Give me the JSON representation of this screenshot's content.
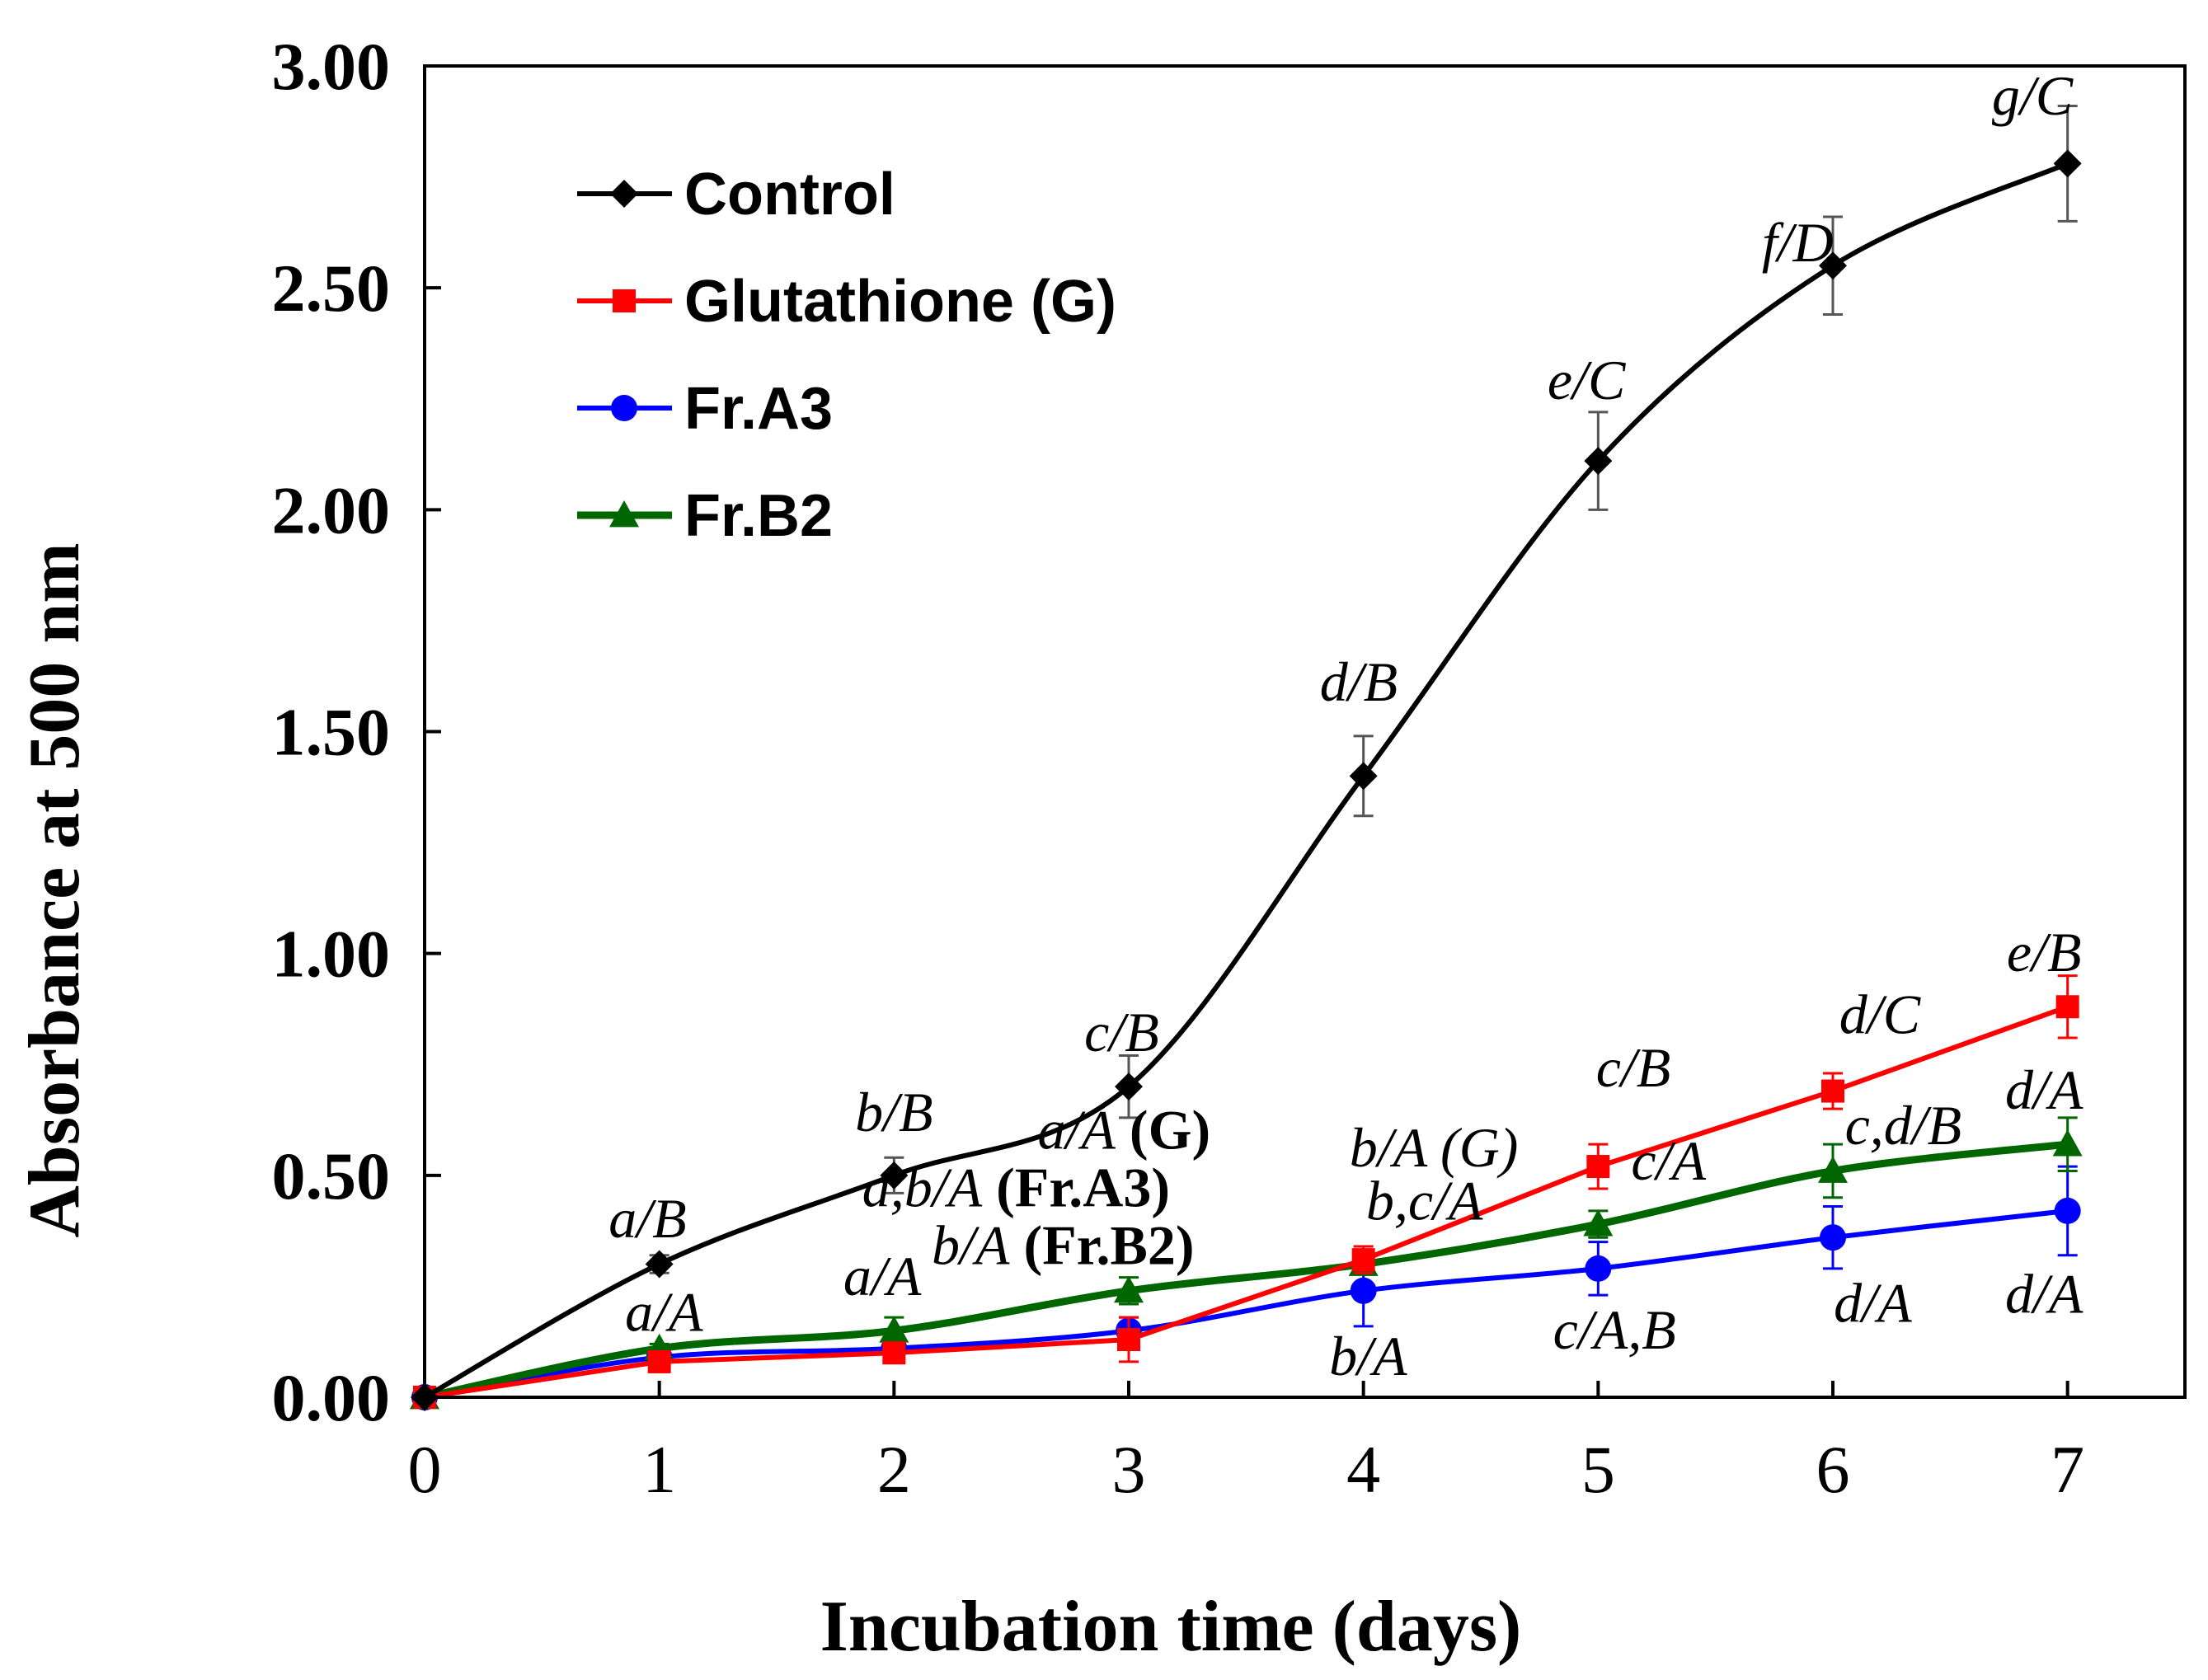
{
  "chart_data": {
    "type": "line",
    "title": "",
    "xlabel": "Incubation time (days)",
    "ylabel": "Absorbance at 500 nm",
    "x": [
      0,
      1,
      2,
      3,
      4,
      5,
      6,
      7
    ],
    "xlim": [
      0,
      7.5
    ],
    "ylim": [
      0,
      3.0
    ],
    "yticks": [
      "0.00",
      "0.50",
      "1.00",
      "1.50",
      "2.00",
      "2.50",
      "3.00"
    ],
    "xticks": [
      "0",
      "1",
      "2",
      "3",
      "4",
      "5",
      "6",
      "7"
    ],
    "legend_position": "top-left",
    "grid": false,
    "series": [
      {
        "name": "Control",
        "color": "#000000",
        "marker": "diamond",
        "smooth": true,
        "values": [
          0.0,
          0.3,
          0.5,
          0.7,
          1.4,
          2.11,
          2.55,
          2.78
        ],
        "errors": [
          0.0,
          0.02,
          0.04,
          0.07,
          0.09,
          0.11,
          0.11,
          0.13
        ]
      },
      {
        "name": "Glutathione (G)",
        "color": "#ff0000",
        "marker": "square",
        "smooth": false,
        "values": [
          0.0,
          0.08,
          0.1,
          0.13,
          0.31,
          0.52,
          0.69,
          0.88
        ],
        "errors": [
          0.0,
          0.02,
          0.02,
          0.05,
          0.03,
          0.05,
          0.04,
          0.07
        ]
      },
      {
        "name": "Fr.A3",
        "color": "#0000ff",
        "marker": "circle",
        "smooth": true,
        "values": [
          0.0,
          0.09,
          0.11,
          0.15,
          0.24,
          0.29,
          0.36,
          0.42
        ],
        "errors": [
          0.0,
          0.02,
          0.02,
          0.03,
          0.08,
          0.06,
          0.07,
          0.1
        ]
      },
      {
        "name": "Fr.B2",
        "color": "#006600",
        "marker": "triangle",
        "smooth": true,
        "values": [
          0.0,
          0.11,
          0.15,
          0.24,
          0.3,
          0.39,
          0.51,
          0.57
        ],
        "errors": [
          0.0,
          0.01,
          0.03,
          0.03,
          0.02,
          0.03,
          0.06,
          0.06
        ]
      }
    ],
    "annotations": [
      {
        "text": "a/B",
        "x": 0.95,
        "y": 0.36
      },
      {
        "text": "b/B",
        "x": 2.0,
        "y": 0.6
      },
      {
        "text": "c/B",
        "x": 2.97,
        "y": 0.78
      },
      {
        "text": "d/B",
        "x": 3.98,
        "y": 1.57
      },
      {
        "text": "e/C",
        "x": 4.95,
        "y": 2.25
      },
      {
        "text": "f/D",
        "x": 5.85,
        "y": 2.56
      },
      {
        "text": "g/C",
        "x": 6.85,
        "y": 2.89
      },
      {
        "text": "a/A",
        "x": 1.02,
        "y": 0.15
      },
      {
        "text": "a/A",
        "x": 1.95,
        "y": 0.23
      },
      {
        "text": "a/A",
        "x": 2.98,
        "y": 0.56,
        "suffix": " (G)"
      },
      {
        "text": "a,b/A",
        "x": 2.52,
        "y": 0.43,
        "suffix": " (Fr.A3)"
      },
      {
        "text": "b/A",
        "x": 2.72,
        "y": 0.3,
        "suffix": " (Fr.B2)"
      },
      {
        "text": "b/A (G)",
        "x": 4.3,
        "y": 0.52
      },
      {
        "text": "b,c/A",
        "x": 4.26,
        "y": 0.4
      },
      {
        "text": "b/A",
        "x": 4.02,
        "y": 0.05
      },
      {
        "text": "c/B",
        "x": 5.15,
        "y": 0.7
      },
      {
        "text": "c/A",
        "x": 5.3,
        "y": 0.49
      },
      {
        "text": "c/A,B",
        "x": 5.07,
        "y": 0.11
      },
      {
        "text": "d/C",
        "x": 6.2,
        "y": 0.82
      },
      {
        "text": "c,d/B",
        "x": 6.3,
        "y": 0.57
      },
      {
        "text": "d/A",
        "x": 6.17,
        "y": 0.17
      },
      {
        "text": "e/B",
        "x": 6.9,
        "y": 0.96
      },
      {
        "text": "d/A",
        "x": 6.9,
        "y": 0.65
      },
      {
        "text": "d/A",
        "x": 6.9,
        "y": 0.19
      }
    ]
  }
}
